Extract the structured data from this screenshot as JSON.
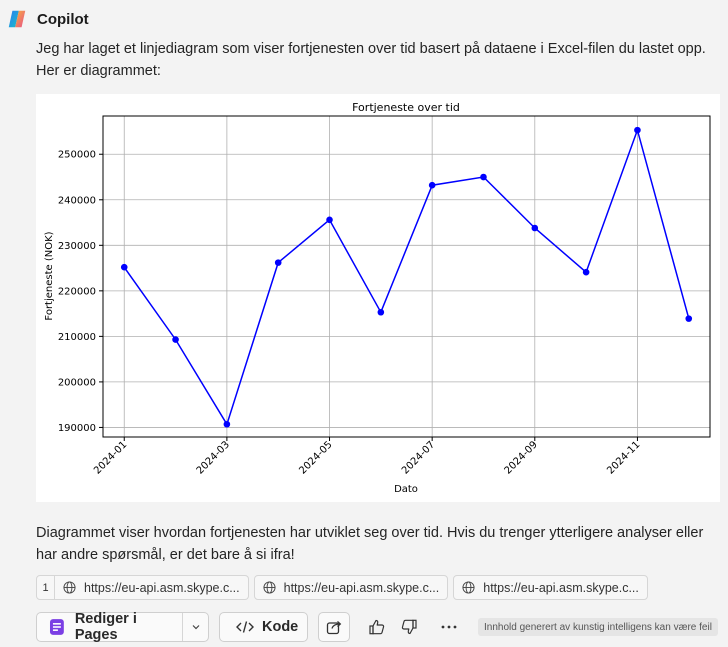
{
  "header": {
    "app_name": "Copilot",
    "logo_icon": "copilot-logo-icon"
  },
  "message": {
    "intro": "Jeg har laget et linjediagram som viser fortjenesten over tid basert på dataene i Excel-filen du lastet opp. Her er diagrammet:",
    "outro": "Diagrammet viser hvordan fortjenesten har utviklet seg over tid. Hvis du trenger ytterligere analyser eller har andre spørsmål, er det bare å si ifra!"
  },
  "chart_data": {
    "type": "line",
    "title": "Fortjeneste over tid",
    "xlabel": "Dato",
    "ylabel": "Fortjeneste (NOK)",
    "x": [
      "2024-01",
      "2024-02",
      "2024-03",
      "2024-04",
      "2024-05",
      "2024-06",
      "2024-07",
      "2024-08",
      "2024-09",
      "2024-10",
      "2024-11",
      "2024-12"
    ],
    "y": [
      225200,
      209300,
      190700,
      226200,
      235600,
      215300,
      243200,
      245000,
      233800,
      224100,
      255300,
      213900
    ],
    "x_tick_labels": [
      "2024-01",
      "2024-03",
      "2024-05",
      "2024-07",
      "2024-09",
      "2024-11"
    ],
    "y_ticks": [
      190000,
      200000,
      210000,
      220000,
      230000,
      240000,
      250000
    ],
    "ylim": [
      187900,
      258400
    ],
    "line_color": "#0000ff",
    "marker": "circle",
    "grid": true
  },
  "references": {
    "count_label": "1",
    "items": [
      {
        "label": "https://eu-api.asm.skype.c...",
        "icon": "globe-icon"
      },
      {
        "label": "https://eu-api.asm.skype.c...",
        "icon": "globe-icon"
      },
      {
        "label": "https://eu-api.asm.skype.c...",
        "icon": "globe-icon"
      }
    ]
  },
  "actions": {
    "edit_pages_label": "Rediger i Pages",
    "code_label": "Kode",
    "disclaimer": "Innhold generert av kunstig intelligens kan være feil",
    "accent_color": "#7b3fe4"
  }
}
